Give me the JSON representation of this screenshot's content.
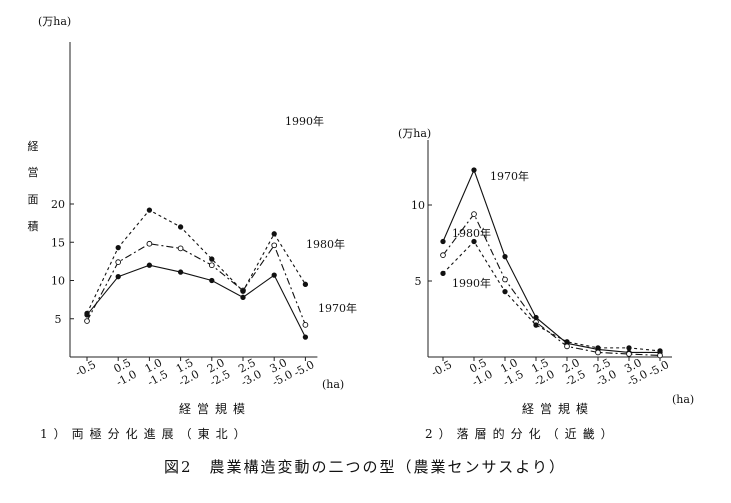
{
  "figure_caption": "図2　農業構造変動の二つの型（農業センサスより）",
  "chart_data": [
    {
      "type": "line",
      "title": "1）両極分化進展（東北）",
      "ylabel": "経営面積",
      "yunit": "(万ha)",
      "xlabel": "経営規模",
      "xunit": "(ha)",
      "ylim": [
        0,
        20
      ],
      "yticks": [
        "5",
        "10",
        "15",
        "20"
      ],
      "categories": [
        "-0.5",
        "0.5\n-1.0",
        "1.0\n-1.5",
        "1.5\n-2.0",
        "2.0\n-2.5",
        "2.5\n-3.0",
        "3.0\n-5.0",
        "-5.0"
      ],
      "series": [
        {
          "name": "1970年",
          "values": [
            5.5,
            10.5,
            12.0,
            11.1,
            10.0,
            7.8,
            10.7,
            2.6
          ]
        },
        {
          "name": "1980年",
          "values": [
            4.7,
            12.4,
            14.8,
            14.2,
            12.0,
            8.7,
            14.6,
            4.2
          ]
        },
        {
          "name": "1990年",
          "values": [
            5.7,
            14.3,
            19.2,
            17.0,
            12.8,
            8.6,
            16.1,
            9.5
          ]
        }
      ]
    },
    {
      "type": "line",
      "title": "2）落層的分化（近畿）",
      "ylabel": "",
      "yunit": "(万ha)",
      "xlabel": "経営規模",
      "xunit": "(ha)",
      "ylim": [
        0,
        15
      ],
      "yticks": [
        "5",
        "10"
      ],
      "categories": [
        "-0.5",
        "0.5\n-1.0",
        "1.0\n-1.5",
        "1.5\n-2.0",
        "2.0\n-2.5",
        "2.5\n-3.0",
        "3.0\n-5.0",
        "-5.0"
      ],
      "series": [
        {
          "name": "1970年",
          "values": [
            7.6,
            12.3,
            6.6,
            2.6,
            0.9,
            0.5,
            0.3,
            0.3
          ]
        },
        {
          "name": "1980年",
          "values": [
            6.7,
            9.4,
            5.1,
            2.3,
            0.7,
            0.3,
            0.2,
            0.1
          ]
        },
        {
          "name": "1990年",
          "values": [
            5.5,
            7.6,
            4.3,
            2.1,
            1.0,
            0.6,
            0.6,
            0.4
          ]
        }
      ]
    }
  ]
}
